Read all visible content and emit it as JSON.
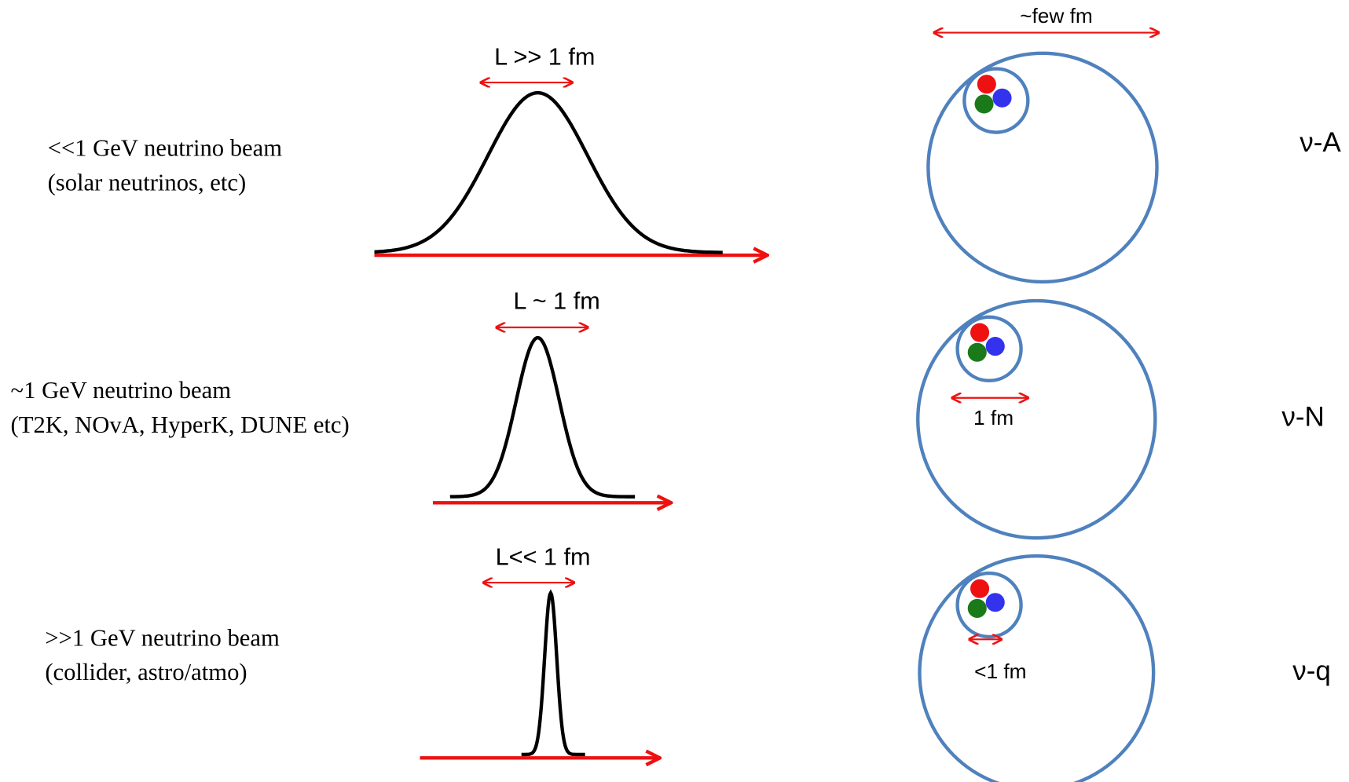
{
  "top_scale": "~few fm",
  "rows": [
    {
      "beam": [
        "<<1 GeV neutrino beam",
        "(solar neutrinos, etc)"
      ],
      "width": "L >> 1 fm",
      "target": "ν-A"
    },
    {
      "beam": [
        "~1 GeV neutrino beam",
        "(T2K, NOvA, HyperK, DUNE etc)"
      ],
      "width": "L ~ 1 fm",
      "target": "ν-N",
      "scale": "1 fm"
    },
    {
      "beam": [
        ">>1 GeV neutrino beam",
        "(collider, astro/atmo)"
      ],
      "width": "L<< 1 fm",
      "target": "ν-q",
      "scale": "<1 fm"
    }
  ]
}
